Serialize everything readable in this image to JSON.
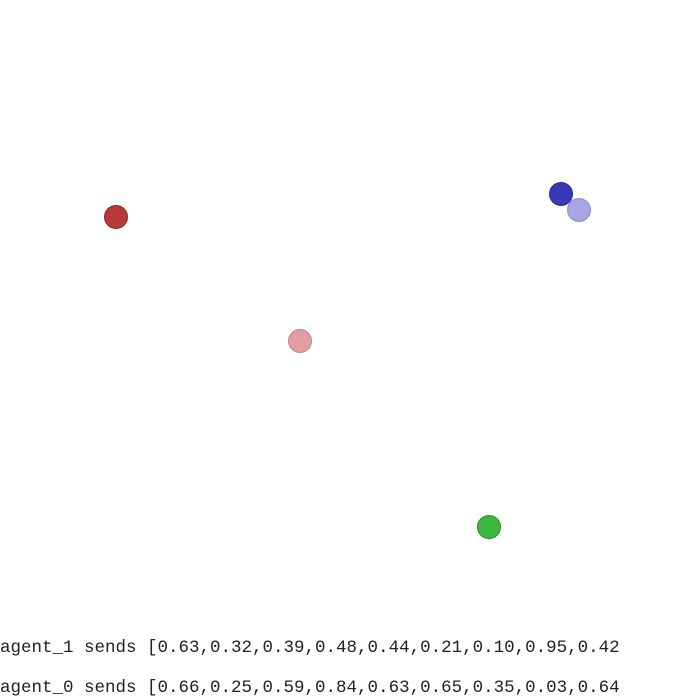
{
  "environment": {
    "background_color": "#ffffff"
  },
  "entities": [
    {
      "name": "agent-red",
      "kind": "agent",
      "color": "#b83a3a",
      "border": "#8a2a2a"
    },
    {
      "name": "agent-blue",
      "kind": "agent",
      "color": "#3a3ab8",
      "border": "#2a2a8a"
    },
    {
      "name": "landmark-light-red",
      "kind": "landmark",
      "color": "#e09ea0",
      "border": "#c08587"
    },
    {
      "name": "landmark-light-blue",
      "kind": "landmark",
      "color": "#a6a6e6",
      "border": "#8a8ac8"
    },
    {
      "name": "landmark-green",
      "kind": "landmark",
      "color": "#3cb83c",
      "border": "#2a8a2a"
    }
  ],
  "messages": [
    {
      "text": "agent_1 sends [0.63,0.32,0.39,0.48,0.44,0.21,0.10,0.95,0.42"
    },
    {
      "text": "agent_0 sends [0.66,0.25,0.59,0.84,0.63,0.65,0.35,0.03,0.64"
    }
  ]
}
